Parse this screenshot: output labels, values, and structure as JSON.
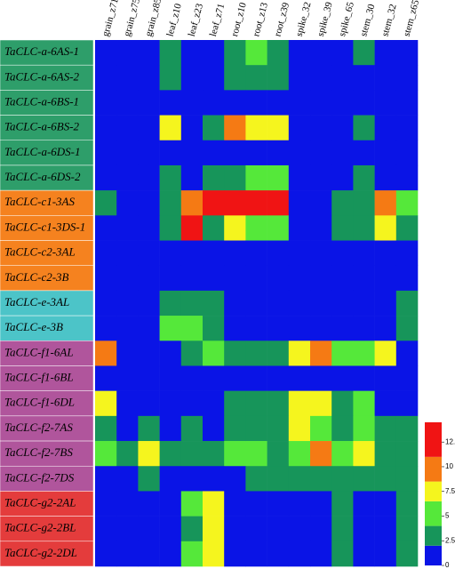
{
  "chart_data": {
    "type": "heatmap",
    "columns": [
      "grain_z71",
      "grain_z75",
      "grain_z85",
      "leaf_z10",
      "leaf_z23",
      "leaf_z71",
      "root_z10",
      "root_z13",
      "root_z39",
      "spike_32",
      "spike_39",
      "spike_65",
      "stem_30",
      "stem_32",
      "stem_z65"
    ],
    "rows": [
      "TaCLC-a-6AS-1",
      "TaCLC-a-6AS-2",
      "TaCLC-a-6BS-1",
      "TaCLC-a-6BS-2",
      "TaCLC-a-6DS-1",
      "TaCLC-a-6DS-2",
      "TaCLC-c1-3AS",
      "TaCLC-c1-3DS-1",
      "TaCLC-c2-3AL",
      "TaCLC-c2-3B",
      "TaCLC-e-3AL",
      "TaCLC-e-3B",
      "TaCLC-f1-6AL",
      "TaCLC-f1-6BL",
      "TaCLC-f1-6DL",
      "TaCLC-f2-7AS",
      "TaCLC-f2-7BS",
      "TaCLC-f2-7DS",
      "TaCLC-g2-2AL",
      "TaCLC-g2-2BL",
      "TaCLC-g2-2DL"
    ],
    "row_colors": [
      "#2e9e6a",
      "#2e9e6a",
      "#2e9e6a",
      "#2e9e6a",
      "#2e9e6a",
      "#2e9e6a",
      "#f5821f",
      "#f5821f",
      "#f5821f",
      "#f5821f",
      "#4cc4c8",
      "#4cc4c8",
      "#b0559c",
      "#b0559c",
      "#b0559c",
      "#b0559c",
      "#b0559c",
      "#b0559c",
      "#e43c3c",
      "#e43c3c",
      "#e43c3c"
    ],
    "values": [
      [
        0,
        0,
        0,
        3,
        0,
        0,
        3,
        5,
        3,
        0,
        0,
        0,
        3,
        0,
        0
      ],
      [
        0,
        0,
        0,
        3,
        0,
        0,
        3,
        3,
        3,
        0,
        0,
        0,
        0,
        0,
        0
      ],
      [
        0,
        0,
        0,
        0,
        0,
        0,
        0,
        0,
        0,
        0,
        0,
        0,
        0,
        0,
        0
      ],
      [
        0,
        0,
        0,
        8,
        0,
        3,
        10,
        8,
        8,
        0,
        0,
        0,
        3,
        0,
        0
      ],
      [
        0,
        0,
        0,
        0,
        0,
        0,
        0,
        0,
        0,
        0,
        0,
        0,
        0,
        0,
        0
      ],
      [
        0,
        0,
        0,
        3,
        0,
        3,
        3,
        5,
        5,
        0,
        0,
        0,
        3,
        0,
        0
      ],
      [
        3,
        0,
        0,
        3,
        10,
        13,
        13,
        13,
        13,
        0,
        0,
        3,
        3,
        10,
        5
      ],
      [
        0,
        0,
        0,
        3,
        13,
        3,
        8,
        5,
        5,
        0,
        0,
        3,
        3,
        8,
        3
      ],
      [
        0,
        0,
        0,
        0,
        0,
        0,
        0,
        0,
        0,
        0,
        0,
        0,
        0,
        0,
        0
      ],
      [
        0,
        0,
        0,
        0,
        0,
        0,
        0,
        0,
        0,
        0,
        0,
        0,
        0,
        0,
        0
      ],
      [
        0,
        0,
        0,
        3,
        3,
        3,
        0,
        0,
        0,
        0,
        0,
        0,
        0,
        0,
        3
      ],
      [
        0,
        0,
        0,
        5,
        5,
        3,
        0,
        0,
        0,
        0,
        0,
        0,
        0,
        0,
        3
      ],
      [
        10,
        0,
        0,
        0,
        3,
        5,
        3,
        3,
        3,
        8,
        10,
        5,
        5,
        8,
        0
      ],
      [
        0,
        0,
        0,
        0,
        0,
        0,
        0,
        0,
        0,
        0,
        0,
        0,
        0,
        0,
        0
      ],
      [
        8,
        0,
        0,
        0,
        0,
        0,
        3,
        3,
        3,
        8,
        8,
        3,
        5,
        0,
        0
      ],
      [
        3,
        0,
        3,
        0,
        3,
        0,
        3,
        3,
        3,
        8,
        5,
        3,
        5,
        3,
        3
      ],
      [
        5,
        3,
        8,
        3,
        3,
        3,
        5,
        5,
        3,
        5,
        10,
        5,
        8,
        3,
        3
      ],
      [
        0,
        0,
        3,
        0,
        0,
        0,
        0,
        3,
        3,
        3,
        3,
        3,
        3,
        3,
        3
      ],
      [
        0,
        0,
        0,
        0,
        5,
        8,
        0,
        0,
        0,
        0,
        0,
        3,
        0,
        0,
        3
      ],
      [
        0,
        0,
        0,
        0,
        3,
        8,
        0,
        0,
        0,
        0,
        0,
        3,
        0,
        0,
        3
      ],
      [
        0,
        0,
        0,
        0,
        5,
        8,
        0,
        0,
        0,
        0,
        0,
        3,
        0,
        0,
        3
      ]
    ],
    "color_bins": [
      0,
      2,
      4,
      6.5,
      8.5,
      11,
      14.5
    ],
    "colors": [
      "#0a14e6",
      "#17955a",
      "#55e83a",
      "#f5f51e",
      "#f57a14",
      "#f01414"
    ],
    "clim": [
      0,
      14.5
    ],
    "cticks": [
      0,
      2.5,
      5,
      7.5,
      10,
      12.5
    ]
  }
}
